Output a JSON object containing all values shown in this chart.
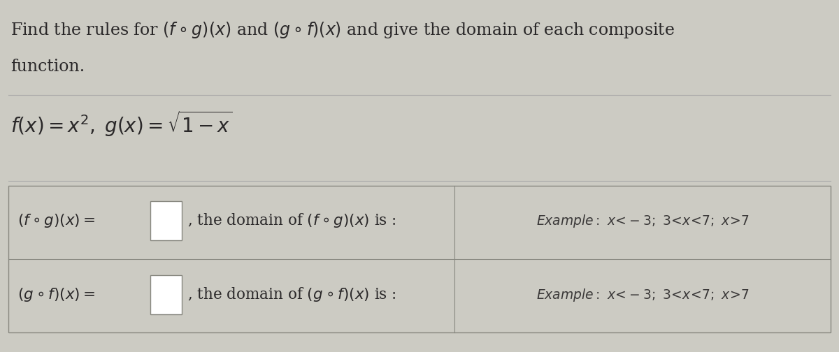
{
  "bg_color": "#cccbc3",
  "text_color": "#2a2829",
  "title_line1": "Find the rules for $(f\\circ g)(x)$ and $(g\\circ f)(x)$ and give the domain of each composite",
  "title_line2": "function.",
  "functions_line": "$f(x)=x^2, \\; g(x)=\\sqrt{1-x}$",
  "row1_left": "$(f\\circ g)(x) = $",
  "row1_mid": ", the domain of $(f\\circ g)(x)$ is :",
  "row1_example": "Example: $x<-3$; $3<x<7$; $x>7$",
  "row2_left": "$(g\\circ f)(x) = $",
  "row2_mid": ", the domain of $(g\\circ f)(x)$ is :",
  "row2_example": "Example: $x<-3$; $3<x<7$; $x>7$",
  "small_box_facecolor": "#dddcd4",
  "small_box_edgecolor": "#888880",
  "example_box_facecolor": "#d8d7cf",
  "example_box_edgecolor": "#777770",
  "section_border_color": "#888880"
}
